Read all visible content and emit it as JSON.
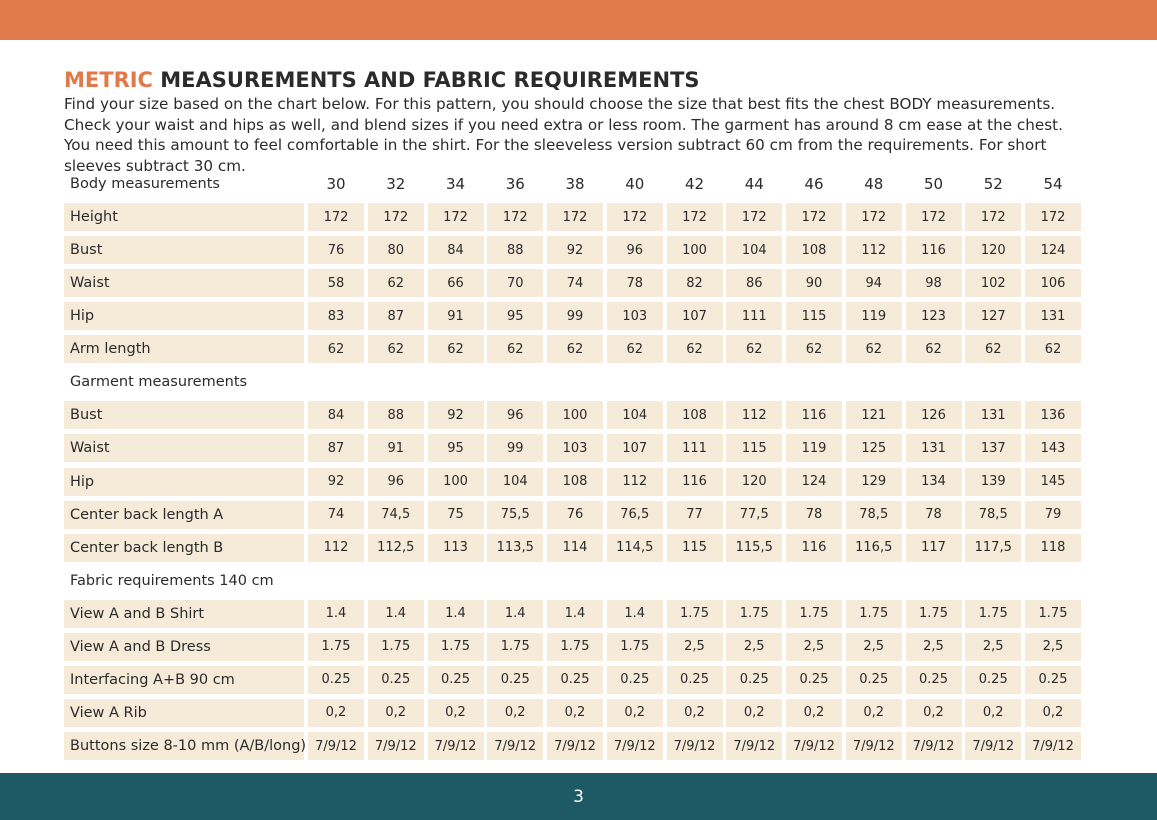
{
  "header": {
    "title_accent": "METRIC",
    "title_rest": "MEASUREMENTS AND FABRIC REQUIREMENTS",
    "intro": "Find your size based on the chart below. For this pattern, you should choose the size that best fits the chest BODY measurements. Check your waist and hips as well, and blend sizes if you need extra or less room. The garment has around 8 cm ease at the chest. You need this amount to feel comfortable in the shirt. For the sleeveless version subtract 60 cm from the requirements. For short sleeves subtract 30 cm."
  },
  "table": {
    "sizes": [
      "30",
      "32",
      "34",
      "36",
      "38",
      "40",
      "42",
      "44",
      "46",
      "48",
      "50",
      "52",
      "54"
    ],
    "sections": [
      {
        "title": "Body measurements",
        "rows": [
          {
            "label": "Height",
            "values": [
              "172",
              "172",
              "172",
              "172",
              "172",
              "172",
              "172",
              "172",
              "172",
              "172",
              "172",
              "172",
              "172"
            ]
          },
          {
            "label": "Bust",
            "values": [
              "76",
              "80",
              "84",
              "88",
              "92",
              "96",
              "100",
              "104",
              "108",
              "112",
              "116",
              "120",
              "124"
            ]
          },
          {
            "label": "Waist",
            "values": [
              "58",
              "62",
              "66",
              "70",
              "74",
              "78",
              "82",
              "86",
              "90",
              "94",
              "98",
              "102",
              "106"
            ]
          },
          {
            "label": "Hip",
            "values": [
              "83",
              "87",
              "91",
              "95",
              "99",
              "103",
              "107",
              "111",
              "115",
              "119",
              "123",
              "127",
              "131"
            ]
          },
          {
            "label": "Arm length",
            "values": [
              "62",
              "62",
              "62",
              "62",
              "62",
              "62",
              "62",
              "62",
              "62",
              "62",
              "62",
              "62",
              "62"
            ]
          }
        ]
      },
      {
        "title": "Garment measurements",
        "rows": [
          {
            "label": "Bust",
            "values": [
              "84",
              "88",
              "92",
              "96",
              "100",
              "104",
              "108",
              "112",
              "116",
              "121",
              "126",
              "131",
              "136"
            ]
          },
          {
            "label": "Waist",
            "values": [
              "87",
              "91",
              "95",
              "99",
              "103",
              "107",
              "111",
              "115",
              "119",
              "125",
              "131",
              "137",
              "143"
            ]
          },
          {
            "label": "Hip",
            "values": [
              "92",
              "96",
              "100",
              "104",
              "108",
              "112",
              "116",
              "120",
              "124",
              "129",
              "134",
              "139",
              "145"
            ]
          },
          {
            "label": "Center back length A",
            "values": [
              "74",
              "74,5",
              "75",
              "75,5",
              "76",
              "76,5",
              "77",
              "77,5",
              "78",
              "78,5",
              "78",
              "78,5",
              "79"
            ]
          },
          {
            "label": "Center back length B",
            "values": [
              "112",
              "112,5",
              "113",
              "113,5",
              "114",
              "114,5",
              "115",
              "115,5",
              "116",
              "116,5",
              "117",
              "117,5",
              "118"
            ]
          }
        ]
      },
      {
        "title": "Fabric requirements 140 cm",
        "rows": [
          {
            "label": "View A and B Shirt",
            "values": [
              "1.4",
              "1.4",
              "1.4",
              "1.4",
              "1.4",
              "1.4",
              "1.75",
              "1.75",
              "1.75",
              "1.75",
              "1.75",
              "1.75",
              "1.75"
            ]
          },
          {
            "label": "View A and B Dress",
            "values": [
              "1.75",
              "1.75",
              "1.75",
              "1.75",
              "1.75",
              "1.75",
              "2,5",
              "2,5",
              "2,5",
              "2,5",
              "2,5",
              "2,5",
              "2,5"
            ]
          },
          {
            "label": "Interfacing  A+B 90 cm",
            "values": [
              "0.25",
              "0.25",
              "0.25",
              "0.25",
              "0.25",
              "0.25",
              "0.25",
              "0.25",
              "0.25",
              "0.25",
              "0.25",
              "0.25",
              "0.25"
            ]
          },
          {
            "label": "View A Rib",
            "values": [
              "0,2",
              "0,2",
              "0,2",
              "0,2",
              "0,2",
              "0,2",
              "0,2",
              "0,2",
              "0,2",
              "0,2",
              "0,2",
              "0,2",
              "0,2"
            ]
          },
          {
            "label": "Buttons size 8-10 mm (A/B/long)",
            "values": [
              "7/9/12",
              "7/9/12",
              "7/9/12",
              "7/9/12",
              "7/9/12",
              "7/9/12",
              "7/9/12",
              "7/9/12",
              "7/9/12",
              "7/9/12",
              "7/9/12",
              "7/9/12",
              "7/9/12"
            ]
          }
        ]
      }
    ]
  },
  "footer": {
    "page_number": "3"
  }
}
